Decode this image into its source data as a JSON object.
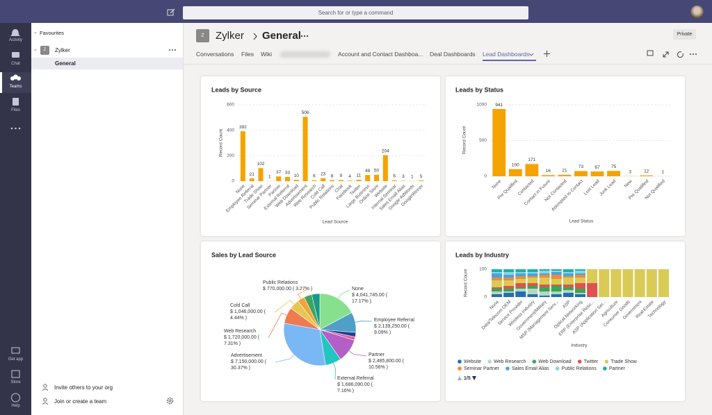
{
  "top_bar": {
    "search_placeholder": "Search for or type a command"
  },
  "rail": [
    "Activity",
    "Chat",
    "Teams",
    "Files",
    "Get app",
    "Store",
    "Help"
  ],
  "sidebar": {
    "section": "Favourites",
    "team_initial": "Z",
    "team": "Zylker",
    "channel": "General",
    "footer": [
      "Invite others to your org",
      "Join or create a team"
    ]
  },
  "header": {
    "team": "Zylker",
    "channel": "General",
    "privacy": "Private",
    "tabs": [
      "Conversations",
      "Files",
      "Wiki",
      "Account and Contact Dashboa...",
      "Deal Dashboards",
      "Lead Dashboards"
    ]
  },
  "chart_data": [
    {
      "type": "bar",
      "title": "Leads by Source",
      "x_label": "Lead Source",
      "y_label": "Record Count",
      "color": "#f5a300",
      "categories": [
        "None",
        "Employee Referral",
        "Trade Show",
        "Seminar Partner",
        "Partner",
        "External Referral",
        "Web Download",
        "Advertisement",
        "Web Research",
        "Cold Call",
        "Public Relations",
        "Chat",
        "Facebook",
        "Twitter",
        "Large Business",
        "Online Store",
        "Website",
        "Internal Seminar",
        "Sales Email Alias",
        "Google AdWords",
        "GoogleWinner"
      ],
      "values": [
        392,
        21,
        102,
        1,
        37,
        33,
        10,
        506,
        6,
        23,
        8,
        9,
        4,
        11,
        48,
        50,
        204,
        6,
        3,
        1,
        5
      ],
      "ylim": [
        0,
        600
      ],
      "yticks": [
        0,
        200,
        400,
        600
      ],
      "grid": true
    },
    {
      "type": "bar",
      "title": "Leads by Status",
      "x_label": "Lead Status",
      "y_label": "Record Count",
      "color": "#f5a300",
      "categories": [
        "None",
        "Pre Qualified",
        "Contacted",
        "Contact in Future",
        "Not Contacted",
        "Attempted to Contact",
        "Lost Lead",
        "Junk Lead",
        "New",
        "Pre Qualified",
        "Not Qualified"
      ],
      "values": [
        941,
        100,
        171,
        16,
        21,
        73,
        67,
        75,
        3,
        12,
        1
      ],
      "ylim": [
        0,
        1000
      ],
      "yticks": [
        0,
        500,
        1000
      ],
      "grid": true
    },
    {
      "type": "pie",
      "title": "Sales by Lead Source",
      "categories": [
        "None",
        "Employee Referral",
        null,
        null,
        "Partner",
        "External Referral",
        "Advertisement",
        "Web Research",
        "Cold Call",
        "Public Relations",
        null,
        null
      ],
      "values": [
        17.17,
        9.09,
        2,
        1.5,
        10.56,
        7.16,
        30.37,
        7.31,
        4.44,
        3.27,
        3.5,
        3.63
      ],
      "value_labels": [
        "$ 4,041,745.00 ( 17.17% )",
        "$ 2,139,250.00 ( 9.09% )",
        null,
        null,
        "$ 2,485,800.00 ( 10.56% )",
        "$ 1,686,090.00 ( 7.16% )",
        "$ 7,150,000.00 ( 30.37% )",
        "$ 1,720,000.00 ( 7.31% )",
        "$ 1,046,000.00 ( 4.44% )",
        "$ 770,000.00 ( 3.27% )",
        null,
        null
      ],
      "colors": [
        "#86e08e",
        "#4f9fc8",
        "#23408f",
        "#e0609a",
        "#b25fc8",
        "#22c5c0",
        "#7ab8f5",
        "#f07a50",
        "#e6c652",
        "#f4a23c",
        "#3fa55a",
        "#17998a"
      ]
    },
    {
      "type": "bar",
      "stacked": true,
      "title": "Leads by Industry",
      "x_label": "Industry",
      "y_label": "Record Count",
      "categories": [
        "None",
        "Data/Telecom OEM",
        "Service Provider",
        "Wireless Industry",
        "Government/Military",
        "MSP (Management Serv...",
        "ASP",
        "Optical Networking",
        "ERP (Enterprise Reso...",
        "ASP (Application Ser...",
        "Agriculture",
        "Consumer Goods",
        "Government",
        "Real Estate",
        "Technology"
      ],
      "series": [
        {
          "name": "Website",
          "color": "#1f6fb5",
          "values": [
            10,
            15,
            20,
            10,
            5,
            10,
            15,
            10,
            0,
            0,
            0,
            0,
            0,
            0,
            0
          ]
        },
        {
          "name": "Web Research",
          "color": "#b7d6c2",
          "values": [
            10,
            5,
            10,
            20,
            15,
            10,
            10,
            5,
            0,
            0,
            0,
            0,
            0,
            0,
            0
          ]
        },
        {
          "name": "Web Download",
          "color": "#3aa655",
          "values": [
            10,
            10,
            5,
            10,
            15,
            20,
            10,
            15,
            0,
            0,
            0,
            0,
            0,
            0,
            0
          ]
        },
        {
          "name": "Twitter",
          "color": "#e0524f",
          "values": [
            5,
            10,
            15,
            10,
            10,
            5,
            10,
            20,
            50,
            0,
            0,
            0,
            0,
            0,
            0
          ]
        },
        {
          "name": "Trade Show",
          "color": "#d9cb55",
          "values": [
            25,
            20,
            15,
            20,
            25,
            20,
            25,
            20,
            50,
            100,
            100,
            100,
            100,
            100,
            100
          ]
        },
        {
          "name": "Seminar Partner",
          "color": "#f08a3c",
          "values": [
            10,
            10,
            10,
            5,
            10,
            15,
            5,
            10,
            0,
            0,
            0,
            0,
            0,
            0,
            0
          ]
        },
        {
          "name": "Sales Email Alias",
          "color": "#4aa3df",
          "values": [
            15,
            10,
            10,
            10,
            5,
            10,
            10,
            5,
            0,
            0,
            0,
            0,
            0,
            0,
            0
          ]
        },
        {
          "name": "Public Relations",
          "color": "#86d6e2",
          "values": [
            5,
            10,
            5,
            5,
            10,
            5,
            5,
            10,
            0,
            0,
            0,
            0,
            0,
            0,
            0
          ]
        },
        {
          "name": "Partner",
          "color": "#17b3a3",
          "values": [
            10,
            10,
            10,
            10,
            5,
            5,
            10,
            5,
            0,
            0,
            0,
            0,
            0,
            0,
            0
          ]
        }
      ],
      "ylim": [
        0,
        100
      ],
      "yticks": [
        0,
        100
      ],
      "grid": true,
      "legend_page": "1/5"
    }
  ]
}
